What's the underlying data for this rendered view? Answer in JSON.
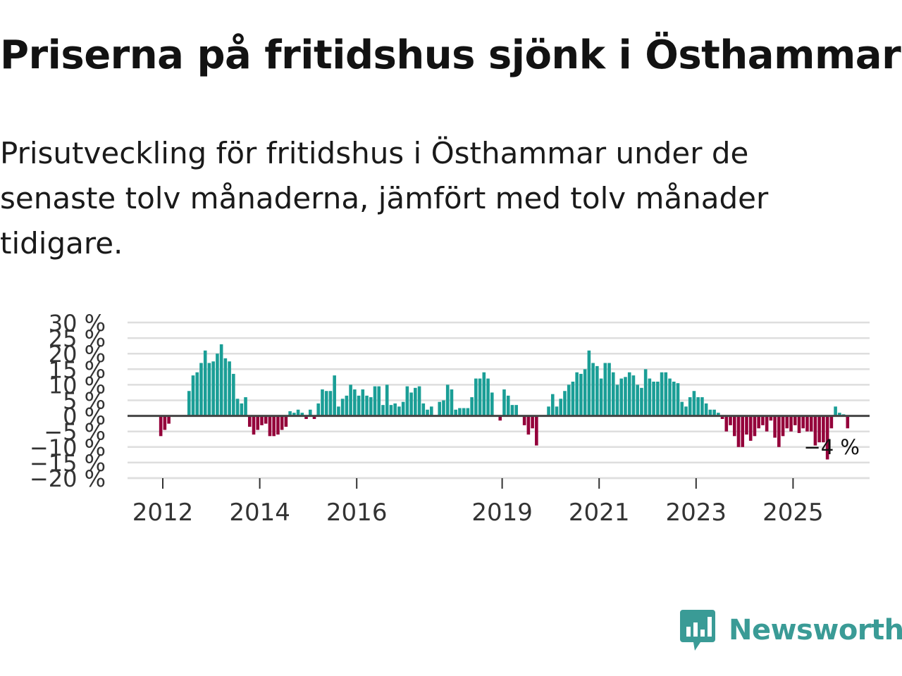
{
  "title": "Priserna på fritidshus sjönk i Östhammar",
  "subtitle": "Prisutveckling för fritidshus i Östhammar under de senaste tolv månaderna, jämfört med tolv månader tidigare.",
  "colors": {
    "positive": "#1a9e96",
    "negative": "#94003a",
    "zero_line": "#444444",
    "grid": "#dedede",
    "brand": "#3a9b96"
  },
  "brand": {
    "name": "Newsworthy",
    "icon": "newsworthy-chart-bubble-icon"
  },
  "chart_data": {
    "type": "bar",
    "title": "Priserna på fritidshus sjönk i Östhammar",
    "xlabel": "",
    "ylabel": "",
    "ylim": [
      -20,
      30
    ],
    "y_ticks": [
      30,
      25,
      20,
      15,
      10,
      5,
      0,
      -5,
      -10,
      -15,
      -20
    ],
    "y_tick_labels": [
      "30 %",
      "25 %",
      "20 %",
      "15 %",
      "10 %",
      "5 %",
      "0 %",
      "−5 %",
      "−10 %",
      "−15 %",
      "−20 %"
    ],
    "x_start": 2011.25,
    "x_tick_labels": [
      "2012",
      "2014",
      "2016",
      "2019",
      "2021",
      "2023",
      "2025"
    ],
    "x_tick_values": [
      2012,
      2014,
      2016,
      2019,
      2021,
      2023,
      2025
    ],
    "series": [
      {
        "name": "Prisutveckling",
        "unit": "%",
        "values": [
          0,
          0,
          0,
          0,
          0,
          0,
          0,
          0,
          -6.5,
          -4.5,
          -2.5,
          0,
          0,
          0,
          0,
          8,
          13,
          14,
          17,
          21,
          17,
          17.5,
          20,
          23,
          18.5,
          17.5,
          13.5,
          5.5,
          4,
          6,
          -3.5,
          -6,
          -4.5,
          -3,
          -2.5,
          -6.5,
          -6.5,
          -6,
          -4.5,
          -3.5,
          1.5,
          1,
          2,
          1,
          -1,
          2,
          -1,
          4,
          8.5,
          8,
          8,
          13,
          3,
          5.5,
          6.5,
          10,
          8.5,
          6.5,
          8.5,
          6.5,
          6,
          9.5,
          9.5,
          3.5,
          10,
          3.5,
          4,
          3,
          4.5,
          9.5,
          7.5,
          9,
          9.5,
          4,
          2,
          3,
          0,
          4.5,
          5,
          10,
          8.5,
          2,
          2.5,
          2.5,
          2.5,
          6,
          12,
          12,
          14,
          12,
          7.5,
          0,
          -1.5,
          8.5,
          6.5,
          3.5,
          3.5,
          0,
          -3,
          -6,
          -4,
          -9.5,
          0,
          0,
          3,
          7,
          3,
          5.5,
          8,
          10,
          11,
          14,
          13.5,
          15,
          21,
          17,
          16,
          12,
          17,
          17,
          14,
          10,
          12,
          12.5,
          14,
          13,
          10,
          9,
          15,
          12,
          11,
          11,
          14,
          14,
          12,
          11,
          10.5,
          4.5,
          3,
          6,
          8,
          6,
          6,
          4,
          2,
          2,
          1,
          -1,
          -5,
          -3,
          -6.5,
          -10,
          -10,
          -6,
          -8,
          -6.5,
          -4,
          -3,
          -5,
          -1.5,
          -7,
          -10,
          -6.5,
          -4,
          -5,
          -3,
          -5.5,
          -4,
          -5,
          -5,
          -9.5,
          -8.5,
          -8.5,
          -14,
          -4,
          3,
          1,
          0.5,
          -4,
          0
        ],
        "last_value_label": "−4 %"
      }
    ],
    "grid": true,
    "legend": "none"
  }
}
